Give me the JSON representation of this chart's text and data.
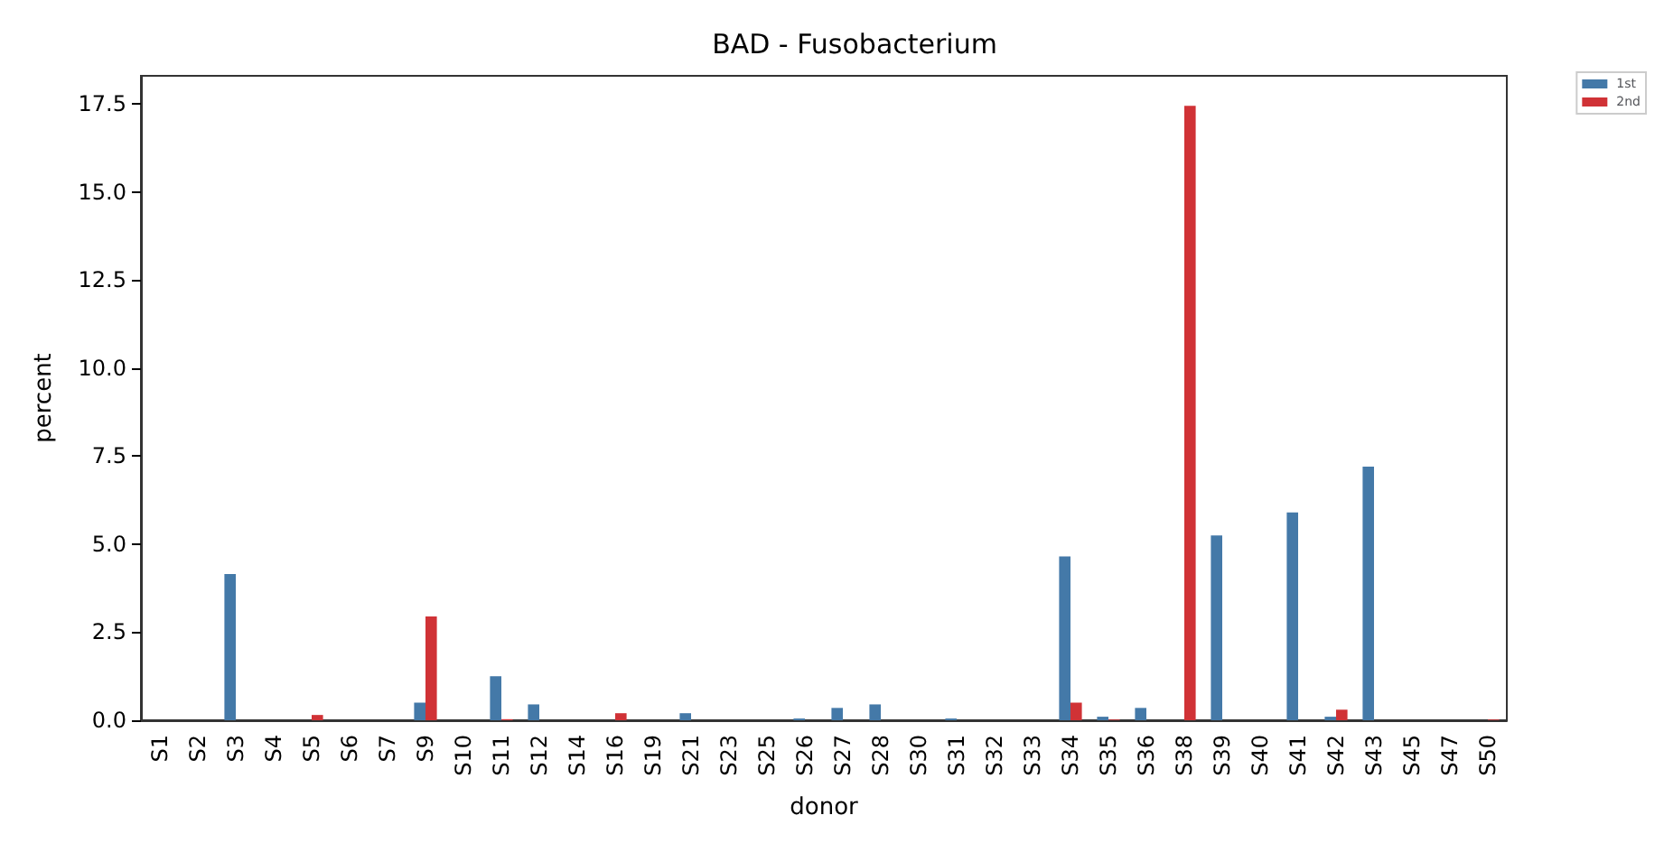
{
  "chart_data": {
    "type": "bar",
    "title": "BAD - Fusobacterium",
    "xlabel": "donor",
    "ylabel": "percent",
    "categories": [
      "S1",
      "S2",
      "S3",
      "S4",
      "S5",
      "S6",
      "S7",
      "S9",
      "S10",
      "S11",
      "S12",
      "S14",
      "S16",
      "S19",
      "S21",
      "S23",
      "S25",
      "S26",
      "S27",
      "S28",
      "S30",
      "S31",
      "S32",
      "S33",
      "S34",
      "S35",
      "S36",
      "S38",
      "S39",
      "S40",
      "S41",
      "S42",
      "S43",
      "S45",
      "S47",
      "S50"
    ],
    "series": [
      {
        "name": "1st",
        "color": "#4479a8",
        "values": [
          0,
          0,
          4.15,
          0,
          0,
          0,
          0,
          0.5,
          0,
          1.25,
          0.45,
          0,
          0,
          0,
          0.2,
          0,
          0,
          0.05,
          0.35,
          0.45,
          0,
          0.05,
          0,
          0,
          4.65,
          0.1,
          0.35,
          0,
          5.25,
          0,
          5.9,
          0.1,
          7.2,
          0,
          0,
          0
        ]
      },
      {
        "name": "2nd",
        "color": "#d03236",
        "values": [
          0,
          0,
          0,
          0,
          0.15,
          0,
          0,
          2.95,
          0,
          0.03,
          0,
          0,
          0.2,
          0,
          0,
          0,
          0,
          0,
          0,
          0,
          0,
          0,
          0,
          0,
          0.5,
          0.02,
          0,
          17.45,
          0,
          0,
          0,
          0.3,
          0,
          0,
          0,
          0.02
        ]
      }
    ],
    "ylim": [
      0,
      18.3
    ],
    "yticks": [
      {
        "value": 0,
        "label": "0.0"
      },
      2.5,
      {
        "value": 5,
        "label": "5.0"
      },
      7.5,
      {
        "value": 10,
        "label": "10.0"
      },
      12.5,
      {
        "value": 15,
        "label": "15.0"
      },
      17.5
    ],
    "grid": false,
    "legend": "top right"
  }
}
